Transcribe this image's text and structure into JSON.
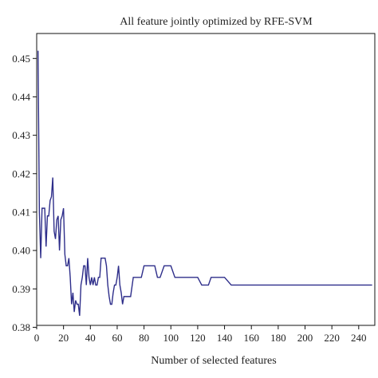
{
  "chart_data": {
    "type": "line",
    "title": "All feature jointly optimized by RFE-SVM",
    "xlabel": "Number of selected features",
    "ylabel": "",
    "xlim": [
      0,
      252
    ],
    "ylim": [
      0.3805,
      0.4565
    ],
    "x_ticks": [
      0,
      20,
      40,
      60,
      80,
      100,
      120,
      140,
      160,
      180,
      200,
      220,
      240
    ],
    "y_ticks": [
      0.38,
      0.39,
      0.4,
      0.41,
      0.42,
      0.43,
      0.44,
      0.45
    ],
    "y_tick_labels": [
      "0.38",
      "0.39",
      "0.40",
      "0.41",
      "0.42",
      "0.43",
      "0.44",
      "0.45"
    ],
    "grid": false,
    "line_color": "#2e2e8a",
    "series": [
      {
        "x": [
          1,
          2,
          3,
          4,
          5,
          6,
          7,
          8,
          9,
          10,
          11,
          12,
          13,
          14,
          15,
          16,
          17,
          18,
          19,
          20,
          21,
          22,
          23,
          24,
          25,
          26,
          27,
          28,
          29,
          30,
          31,
          32,
          33,
          34,
          35,
          36,
          37,
          38,
          39,
          40,
          41,
          42,
          43,
          44,
          45,
          46,
          47,
          48,
          49,
          50,
          51,
          52,
          53,
          54,
          55,
          56,
          57,
          58,
          59,
          60,
          61,
          62,
          63,
          64,
          65,
          66,
          67,
          68,
          70,
          72,
          75,
          78,
          80,
          85,
          88,
          90,
          92,
          95,
          100,
          103,
          105,
          108,
          110,
          113,
          115,
          118,
          120,
          123,
          126,
          128,
          130,
          135,
          140,
          145,
          150,
          200,
          250
        ],
        "y": [
          0.452,
          0.41,
          0.398,
          0.411,
          0.411,
          0.411,
          0.401,
          0.409,
          0.409,
          0.413,
          0.414,
          0.419,
          0.405,
          0.403,
          0.408,
          0.409,
          0.4,
          0.408,
          0.409,
          0.411,
          0.399,
          0.396,
          0.396,
          0.398,
          0.393,
          0.386,
          0.389,
          0.384,
          0.387,
          0.386,
          0.386,
          0.383,
          0.391,
          0.393,
          0.396,
          0.396,
          0.391,
          0.398,
          0.393,
          0.391,
          0.393,
          0.391,
          0.393,
          0.391,
          0.391,
          0.393,
          0.393,
          0.398,
          0.398,
          0.398,
          0.398,
          0.396,
          0.391,
          0.388,
          0.386,
          0.386,
          0.389,
          0.391,
          0.391,
          0.393,
          0.396,
          0.391,
          0.389,
          0.386,
          0.388,
          0.388,
          0.388,
          0.388,
          0.388,
          0.393,
          0.393,
          0.393,
          0.396,
          0.396,
          0.396,
          0.393,
          0.393,
          0.396,
          0.396,
          0.393,
          0.393,
          0.393,
          0.393,
          0.393,
          0.393,
          0.393,
          0.393,
          0.391,
          0.391,
          0.391,
          0.393,
          0.393,
          0.393,
          0.391,
          0.391,
          0.391,
          0.391
        ]
      }
    ]
  }
}
